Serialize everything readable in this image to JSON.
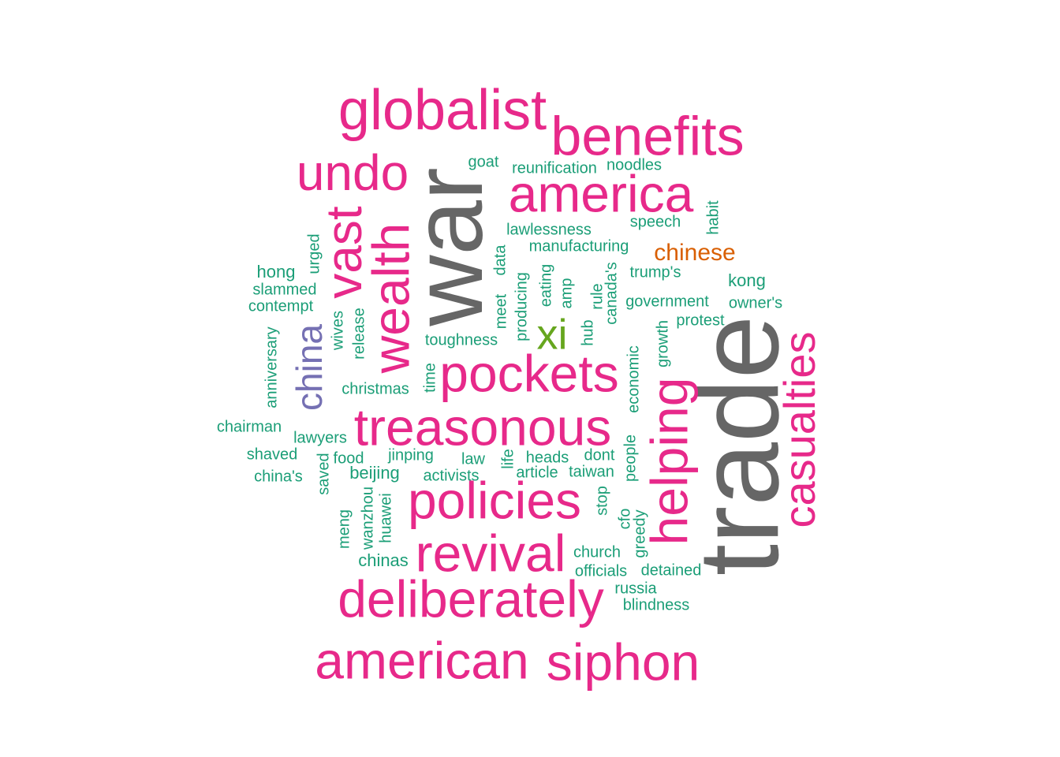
{
  "colors": {
    "background": "#ffffff",
    "gray": "#666666",
    "magenta": "#e7298a",
    "teal": "#1b9e77",
    "purple": "#7570b3",
    "green": "#66a61e",
    "orange": "#d95f02"
  },
  "words": [
    {
      "text": "trade",
      "color": "gray"
    },
    {
      "text": "war",
      "color": "gray"
    },
    {
      "text": "globalist",
      "color": "magenta"
    },
    {
      "text": "benefits",
      "color": "magenta"
    },
    {
      "text": "undo",
      "color": "magenta"
    },
    {
      "text": "america",
      "color": "magenta"
    },
    {
      "text": "vast",
      "color": "magenta"
    },
    {
      "text": "wealth",
      "color": "magenta"
    },
    {
      "text": "pockets",
      "color": "magenta"
    },
    {
      "text": "treasonous",
      "color": "magenta"
    },
    {
      "text": "policies",
      "color": "magenta"
    },
    {
      "text": "revival",
      "color": "magenta"
    },
    {
      "text": "deliberately",
      "color": "magenta"
    },
    {
      "text": "american",
      "color": "magenta"
    },
    {
      "text": "siphon",
      "color": "magenta"
    },
    {
      "text": "helping",
      "color": "magenta"
    },
    {
      "text": "casualties",
      "color": "magenta"
    },
    {
      "text": "china",
      "color": "purple"
    },
    {
      "text": "xi",
      "color": "green"
    },
    {
      "text": "chinese",
      "color": "orange"
    },
    {
      "text": "goat",
      "color": "teal"
    },
    {
      "text": "reunification",
      "color": "teal"
    },
    {
      "text": "noodles",
      "color": "teal"
    },
    {
      "text": "speech",
      "color": "teal"
    },
    {
      "text": "habit",
      "color": "teal"
    },
    {
      "text": "lawlessness",
      "color": "teal"
    },
    {
      "text": "manufacturing",
      "color": "teal"
    },
    {
      "text": "urged",
      "color": "teal"
    },
    {
      "text": "hong",
      "color": "teal"
    },
    {
      "text": "slammed",
      "color": "teal"
    },
    {
      "text": "contempt",
      "color": "teal"
    },
    {
      "text": "data",
      "color": "teal"
    },
    {
      "text": "producing",
      "color": "teal"
    },
    {
      "text": "meet",
      "color": "teal"
    },
    {
      "text": "eating",
      "color": "teal"
    },
    {
      "text": "amp",
      "color": "teal"
    },
    {
      "text": "rule",
      "color": "teal"
    },
    {
      "text": "canada's",
      "color": "teal"
    },
    {
      "text": "trump's",
      "color": "teal"
    },
    {
      "text": "kong",
      "color": "teal"
    },
    {
      "text": "government",
      "color": "teal"
    },
    {
      "text": "owner's",
      "color": "teal"
    },
    {
      "text": "protest",
      "color": "teal"
    },
    {
      "text": "wives",
      "color": "teal"
    },
    {
      "text": "release",
      "color": "teal"
    },
    {
      "text": "anniversary",
      "color": "teal"
    },
    {
      "text": "toughness",
      "color": "teal"
    },
    {
      "text": "hub",
      "color": "teal"
    },
    {
      "text": "growth",
      "color": "teal"
    },
    {
      "text": "economic",
      "color": "teal"
    },
    {
      "text": "time",
      "color": "teal"
    },
    {
      "text": "christmas",
      "color": "teal"
    },
    {
      "text": "chairman",
      "color": "teal"
    },
    {
      "text": "lawyers",
      "color": "teal"
    },
    {
      "text": "shaved",
      "color": "teal"
    },
    {
      "text": "food",
      "color": "teal"
    },
    {
      "text": "jinping",
      "color": "teal"
    },
    {
      "text": "law",
      "color": "teal"
    },
    {
      "text": "life",
      "color": "teal"
    },
    {
      "text": "heads",
      "color": "teal"
    },
    {
      "text": "dont",
      "color": "teal"
    },
    {
      "text": "people",
      "color": "teal"
    },
    {
      "text": "saved",
      "color": "teal"
    },
    {
      "text": "china's",
      "color": "teal"
    },
    {
      "text": "beijing",
      "color": "teal"
    },
    {
      "text": "activists",
      "color": "teal"
    },
    {
      "text": "article",
      "color": "teal"
    },
    {
      "text": "taiwan",
      "color": "teal"
    },
    {
      "text": "stop",
      "color": "teal"
    },
    {
      "text": "meng",
      "color": "teal"
    },
    {
      "text": "wanzhou",
      "color": "teal"
    },
    {
      "text": "huawei",
      "color": "teal"
    },
    {
      "text": "cfo",
      "color": "teal"
    },
    {
      "text": "greedy",
      "color": "teal"
    },
    {
      "text": "church",
      "color": "teal"
    },
    {
      "text": "chinas",
      "color": "teal"
    },
    {
      "text": "officials",
      "color": "teal"
    },
    {
      "text": "detained",
      "color": "teal"
    },
    {
      "text": "russia",
      "color": "teal"
    },
    {
      "text": "blindness",
      "color": "teal"
    }
  ]
}
